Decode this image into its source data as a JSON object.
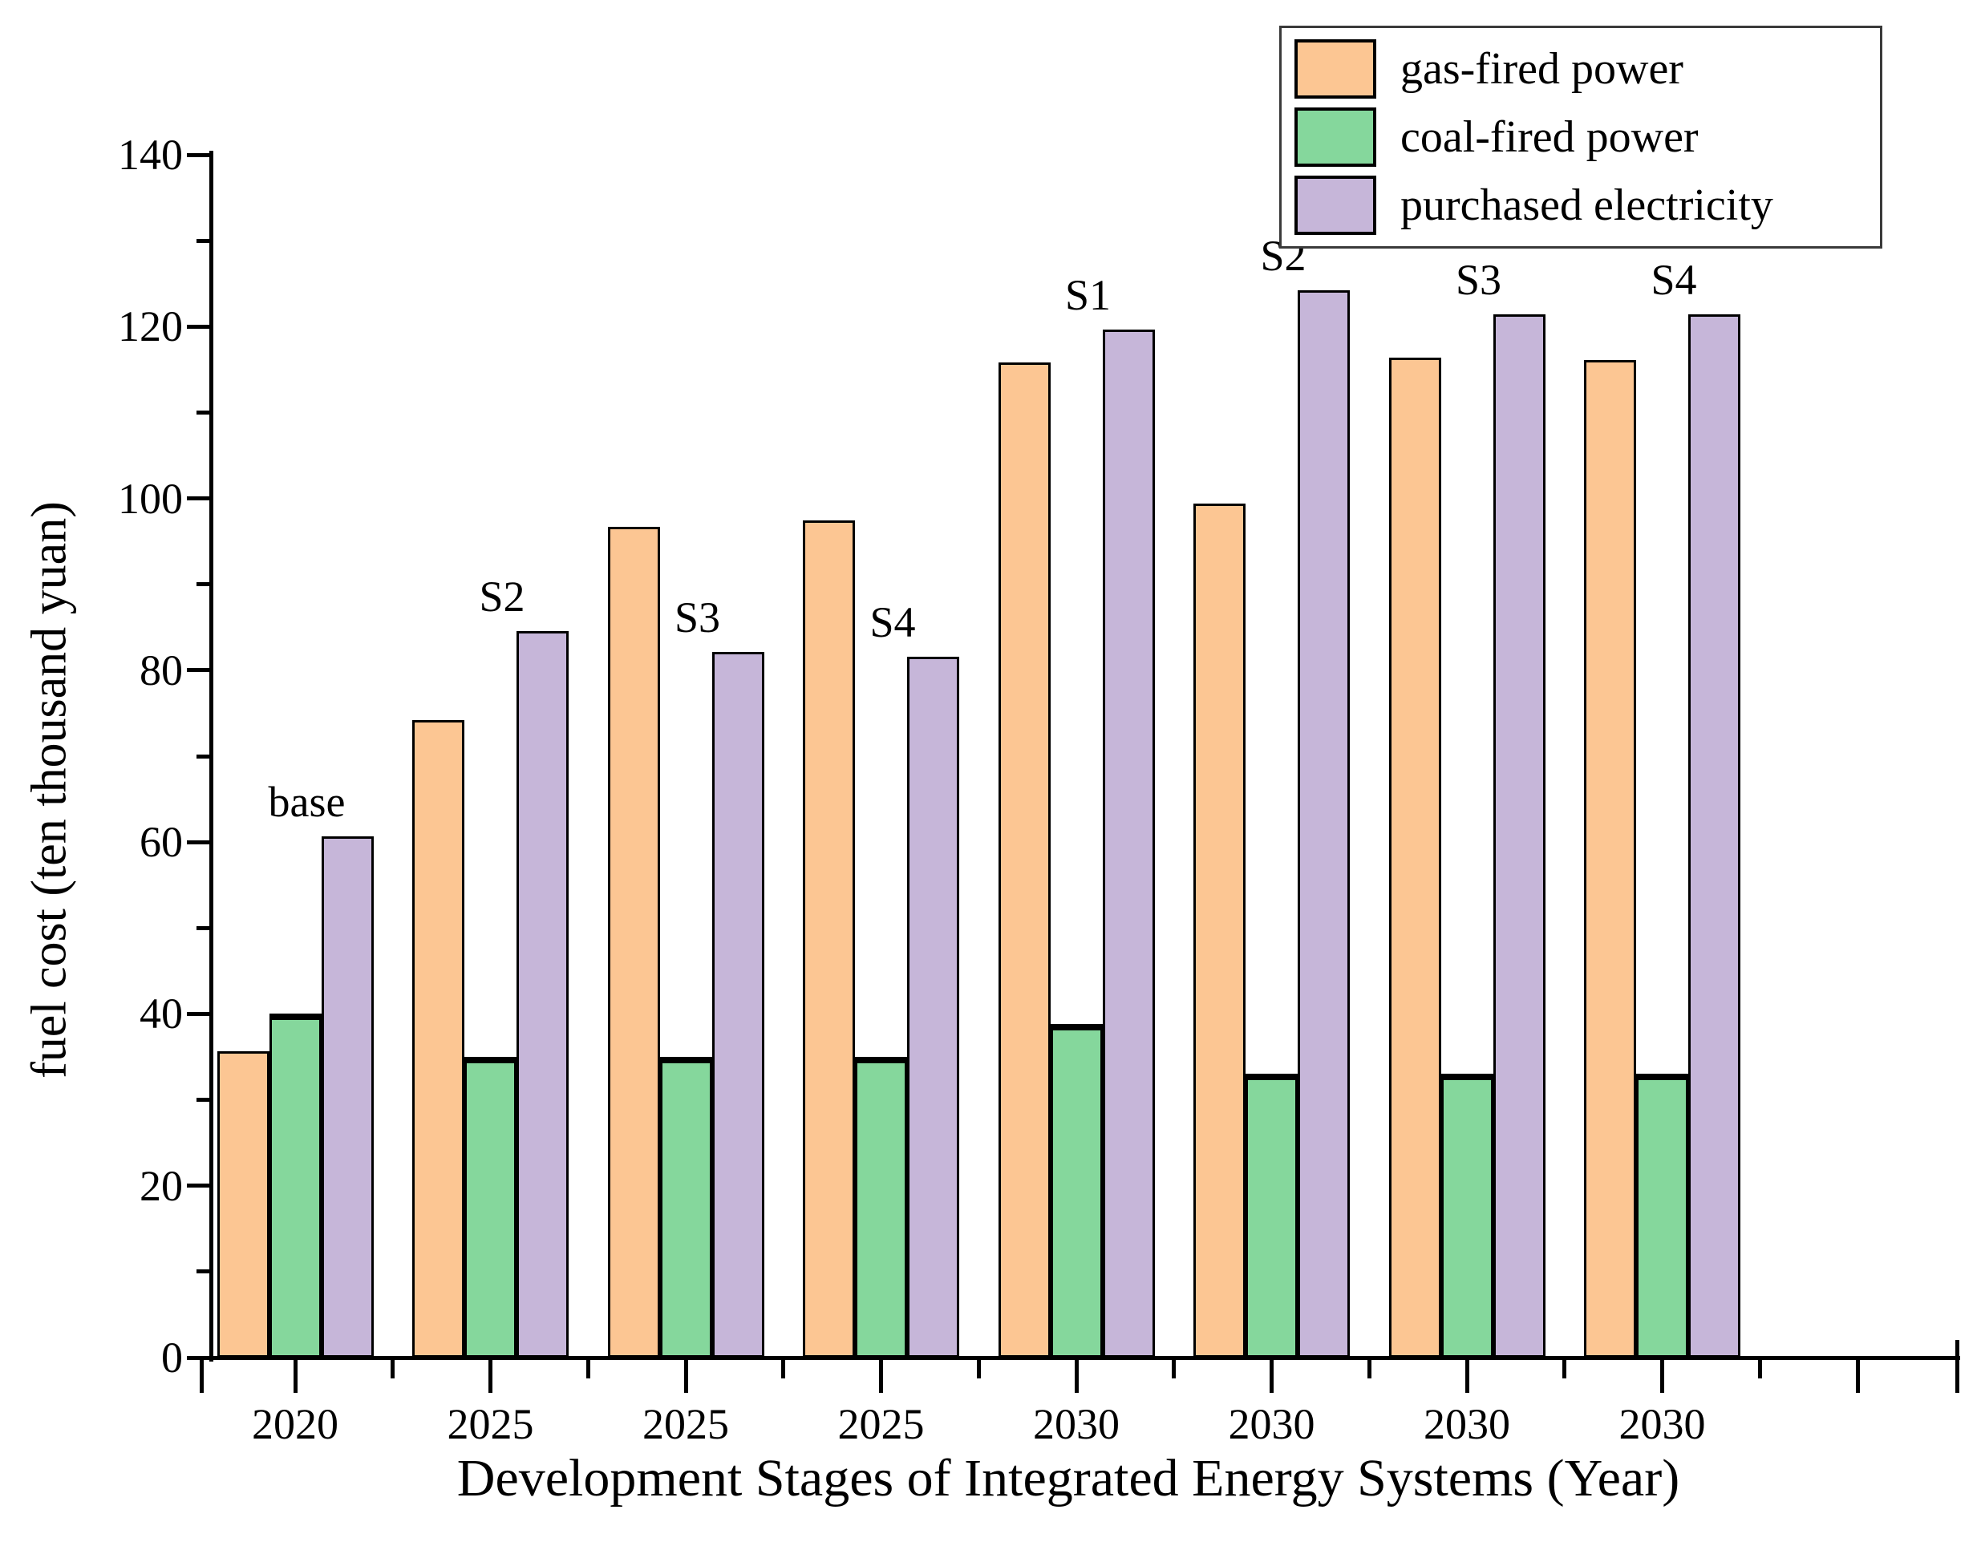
{
  "figure": {
    "background": "#ffffff",
    "axis_color": "#000000",
    "legend_border_color": "#3a3a3a"
  },
  "chart_data": {
    "type": "bar",
    "title": "",
    "xlabel": "Development Stages of Integrated Energy Systems (Year)",
    "ylabel": "fuel cost (ten thousand yuan)",
    "categories": [
      "2020",
      "2025",
      "2025",
      "2025",
      "2030",
      "2030",
      "2030",
      "2030"
    ],
    "group_annotations": [
      "base",
      "S2",
      "S3",
      "S4",
      "S1",
      "S2",
      "S3",
      "S4"
    ],
    "series": [
      {
        "name": "gas-fired power",
        "color": "#FCC693",
        "values": [
          35.7,
          74.2,
          96.7,
          97.4,
          115.8,
          99.4,
          116.4,
          116.1
        ]
      },
      {
        "name": "coal-fired power",
        "color": "#85D79C",
        "values": [
          40.0,
          35.0,
          35.0,
          35.0,
          38.8,
          33.0,
          33.0,
          33.0
        ]
      },
      {
        "name": "purchased electricity",
        "color": "#C6B6D9",
        "values": [
          60.7,
          84.6,
          82.1,
          81.6,
          119.7,
          124.2,
          121.4,
          121.4
        ]
      }
    ],
    "ylim": [
      0,
      140
    ],
    "yticks": [
      0,
      20,
      40,
      60,
      80,
      100,
      120,
      140
    ],
    "ytick_minor_step": 10,
    "grid": false,
    "legend_position": "top-right",
    "bar_edge_color": "#000000"
  }
}
